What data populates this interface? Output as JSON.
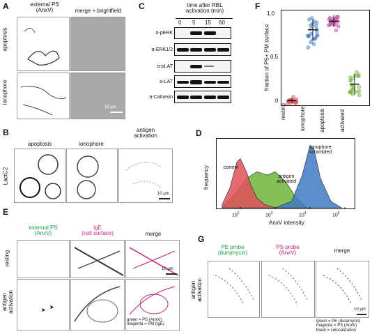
{
  "panels": {
    "A": {
      "label": "A",
      "col1": "external PS\n(AnxV)",
      "col2": "merge + brightfield",
      "row1": "apoptosis",
      "row2": "ionophore",
      "scale": "10 μm"
    },
    "B": {
      "label": "B",
      "col1": "apoptosis",
      "col2": "ionophore",
      "col3": "antigen\nactivation",
      "row": "LactC2",
      "scale": "10 μm"
    },
    "C": {
      "label": "C",
      "title": "time after RBL\nactivation (min)",
      "times": [
        "0",
        "5",
        "15",
        "60"
      ],
      "rows": [
        "α-pERK",
        "α-ERK1/2",
        "α-pLAT",
        "α-LAT",
        "α-Calnexin"
      ]
    },
    "D": {
      "label": "D",
      "ylabel": "frequency",
      "xlabel": "AnxV intensity",
      "ticks": [
        "10",
        "10",
        "10",
        "10"
      ],
      "tick_exp": [
        "2",
        "3",
        "4",
        "5"
      ],
      "labels": {
        "control": "control",
        "antigen": "antigen\nactivated",
        "ionophore": "ionophore\nscrambled"
      },
      "colors": {
        "control": "#e0505a",
        "antigen": "#6fb43a",
        "ionophore": "#3e7ac3"
      }
    },
    "E": {
      "label": "E",
      "col1a": "external PS",
      "col1b": "(AnxV)",
      "col2a": "IgE",
      "col2b": "(cell surface)",
      "col3": "merge",
      "row1": "resting",
      "row2": "antigen\nactivation",
      "scale": "10 μm",
      "legend1": "green = PS (AnxV)",
      "legend2": "magenta = PM (IgE)"
    },
    "F": {
      "label": "F",
      "ylabel": "fraction of PS+ PM surface",
      "yticks": [
        "0",
        "0.5",
        "1.0"
      ]
    },
    "G": {
      "label": "G",
      "col1a": "PE probe",
      "col1b": "(duramycin)",
      "col2a": "PS probe",
      "col2b": "(AnxV)",
      "col3": "merge",
      "row": "antigen\nactivation",
      "scale": "10 μm",
      "legend1": "green = PE (duramycin)",
      "legend2": "magenta = PS (AnxV)",
      "legend3": "black = colocalization"
    }
  },
  "chart_data": [
    {
      "type": "area",
      "xscale": "log",
      "xlabel": "AnxV intensity",
      "ylabel": "frequency",
      "xlim": [
        20,
        200000
      ],
      "series": [
        {
          "name": "control",
          "x": [
            30,
            50,
            80,
            100,
            150,
            200,
            300,
            500,
            1000
          ],
          "y": [
            0.05,
            0.3,
            0.7,
            0.75,
            0.55,
            0.35,
            0.15,
            0.05,
            0
          ]
        },
        {
          "name": "antigen activated",
          "x": [
            30,
            80,
            150,
            300,
            600,
            1000,
            2000,
            4000,
            8000
          ],
          "y": [
            0,
            0.25,
            0.45,
            0.55,
            0.5,
            0.55,
            0.4,
            0.15,
            0
          ]
        },
        {
          "name": "ionophore scrambled",
          "x": [
            1000,
            3000,
            6000,
            10000,
            13000,
            20000,
            40000,
            80000
          ],
          "y": [
            0,
            0.1,
            0.5,
            0.95,
            0.9,
            0.45,
            0.1,
            0
          ]
        }
      ]
    },
    {
      "type": "scatter",
      "categories": [
        "resting",
        "ionophore",
        "apoptosis",
        "activated"
      ],
      "ylabel": "fraction of PS+ PM surface",
      "ylim": [
        0,
        1.05
      ],
      "means": [
        0.03,
        0.85,
        0.95,
        0.22
      ],
      "sd": [
        0.03,
        0.12,
        0.07,
        0.12
      ],
      "colors": [
        "#e0505a",
        "#3e7ac3",
        "#c04aa0",
        "#6fb43a"
      ]
    }
  ]
}
